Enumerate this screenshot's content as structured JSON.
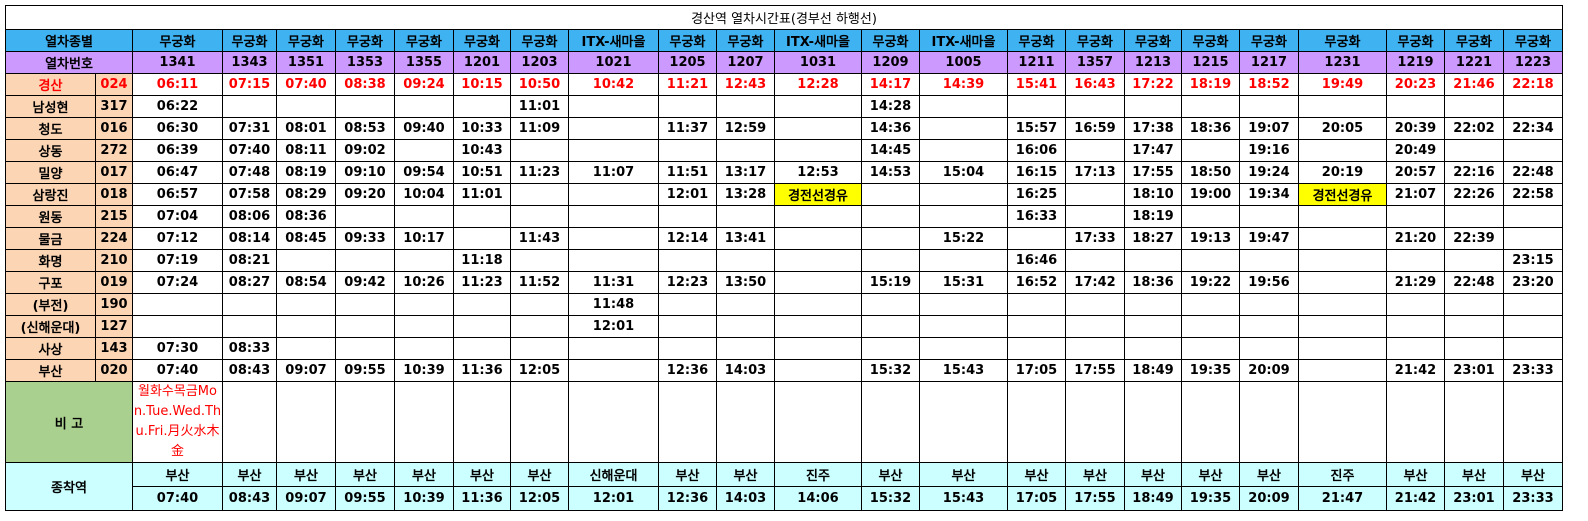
{
  "title": "경산역 열차시간표(경부선 하행선)",
  "header": {
    "type_label": "열차종별",
    "number_label": "열차번호"
  },
  "trains": [
    {
      "type": "무궁화",
      "number": "1341"
    },
    {
      "type": "무궁화",
      "number": "1343"
    },
    {
      "type": "무궁화",
      "number": "1351"
    },
    {
      "type": "무궁화",
      "number": "1353"
    },
    {
      "type": "무궁화",
      "number": "1355"
    },
    {
      "type": "무궁화",
      "number": "1201"
    },
    {
      "type": "무궁화",
      "number": "1203"
    },
    {
      "type": "ITX-새마을",
      "number": "1021"
    },
    {
      "type": "무궁화",
      "number": "1205"
    },
    {
      "type": "무궁화",
      "number": "1207"
    },
    {
      "type": "ITX-새마을",
      "number": "1031"
    },
    {
      "type": "무궁화",
      "number": "1209"
    },
    {
      "type": "ITX-새마을",
      "number": "1005"
    },
    {
      "type": "무궁화",
      "number": "1211"
    },
    {
      "type": "무궁화",
      "number": "1357"
    },
    {
      "type": "무궁화",
      "number": "1213"
    },
    {
      "type": "무궁화",
      "number": "1215"
    },
    {
      "type": "무궁화",
      "number": "1217"
    },
    {
      "type": "무궁화",
      "number": "1231"
    },
    {
      "type": "무궁화",
      "number": "1219"
    },
    {
      "type": "무궁화",
      "number": "1221"
    },
    {
      "type": "무궁화",
      "number": "1223"
    }
  ],
  "stations": [
    {
      "name": "경산",
      "code": "024",
      "times": [
        "06:11",
        "07:15",
        "07:40",
        "08:38",
        "09:24",
        "10:15",
        "10:50",
        "10:42",
        "11:21",
        "12:43",
        "12:28",
        "14:17",
        "14:39",
        "15:41",
        "16:43",
        "17:22",
        "18:19",
        "18:52",
        "19:49",
        "20:23",
        "21:46",
        "22:18"
      ]
    },
    {
      "name": "남성현",
      "code": "317",
      "times": [
        "06:22",
        null,
        null,
        null,
        null,
        null,
        "11:01",
        null,
        null,
        null,
        null,
        "14:28",
        null,
        null,
        null,
        null,
        null,
        null,
        null,
        null,
        null,
        null
      ]
    },
    {
      "name": "청도",
      "code": "016",
      "times": [
        "06:30",
        "07:31",
        "08:01",
        "08:53",
        "09:40",
        "10:33",
        "11:09",
        null,
        "11:37",
        "12:59",
        null,
        "14:36",
        null,
        "15:57",
        "16:59",
        "17:38",
        "18:36",
        "19:07",
        "20:05",
        "20:39",
        "22:02",
        "22:34"
      ]
    },
    {
      "name": "상동",
      "code": "272",
      "times": [
        "06:39",
        "07:40",
        "08:11",
        "09:02",
        null,
        "10:43",
        null,
        null,
        null,
        null,
        null,
        "14:45",
        null,
        "16:06",
        null,
        "17:47",
        null,
        "19:16",
        null,
        "20:49",
        null,
        null
      ]
    },
    {
      "name": "밀양",
      "code": "017",
      "times": [
        "06:47",
        "07:48",
        "08:19",
        "09:10",
        "09:54",
        "10:51",
        "11:23",
        "11:07",
        "11:51",
        "13:17",
        "12:53",
        "14:53",
        "15:04",
        "16:15",
        "17:13",
        "17:55",
        "18:50",
        "19:24",
        "20:19",
        "20:57",
        "22:16",
        "22:48"
      ]
    },
    {
      "name": "삼랑진",
      "code": "018",
      "times": [
        "06:57",
        "07:58",
        "08:29",
        "09:20",
        "10:04",
        "11:01",
        null,
        null,
        "12:01",
        "13:28",
        "경전선경유",
        null,
        null,
        "16:25",
        null,
        "18:10",
        "19:00",
        "19:34",
        "경전선경유",
        "21:07",
        "22:26",
        "22:58"
      ]
    },
    {
      "name": "원동",
      "code": "215",
      "times": [
        "07:04",
        "08:06",
        "08:36",
        null,
        null,
        null,
        null,
        null,
        null,
        null,
        null,
        null,
        null,
        "16:33",
        null,
        "18:19",
        null,
        null,
        null,
        null,
        null,
        null
      ]
    },
    {
      "name": "물금",
      "code": "224",
      "times": [
        "07:12",
        "08:14",
        "08:45",
        "09:33",
        "10:17",
        null,
        "11:43",
        null,
        "12:14",
        "13:41",
        null,
        null,
        "15:22",
        null,
        "17:33",
        "18:27",
        "19:13",
        "19:47",
        null,
        "21:20",
        "22:39",
        null
      ]
    },
    {
      "name": "화명",
      "code": "210",
      "times": [
        "07:19",
        "08:21",
        null,
        null,
        null,
        "11:18",
        null,
        null,
        null,
        null,
        null,
        null,
        null,
        "16:46",
        null,
        null,
        null,
        null,
        null,
        null,
        null,
        "23:15"
      ]
    },
    {
      "name": "구포",
      "code": "019",
      "times": [
        "07:24",
        "08:27",
        "08:54",
        "09:42",
        "10:26",
        "11:23",
        "11:52",
        "11:31",
        "12:23",
        "13:50",
        null,
        "15:19",
        "15:31",
        "16:52",
        "17:42",
        "18:36",
        "19:22",
        "19:56",
        null,
        "21:29",
        "22:48",
        "23:20"
      ]
    },
    {
      "name": "(부전)",
      "code": "190",
      "times": [
        null,
        null,
        null,
        null,
        null,
        null,
        null,
        "11:48",
        null,
        null,
        null,
        null,
        null,
        null,
        null,
        null,
        null,
        null,
        null,
        null,
        null,
        null
      ]
    },
    {
      "name": "(신해운대)",
      "code": "127",
      "times": [
        null,
        null,
        null,
        null,
        null,
        null,
        null,
        "12:01",
        null,
        null,
        null,
        null,
        null,
        null,
        null,
        null,
        null,
        null,
        null,
        null,
        null,
        null
      ]
    },
    {
      "name": "사상",
      "code": "143",
      "times": [
        "07:30",
        "08:33",
        null,
        null,
        null,
        null,
        null,
        null,
        null,
        null,
        null,
        null,
        null,
        null,
        null,
        null,
        null,
        null,
        null,
        null,
        null,
        null
      ]
    },
    {
      "name": "부산",
      "code": "020",
      "times": [
        "07:40",
        "08:43",
        "09:07",
        "09:55",
        "10:39",
        "11:36",
        "12:05",
        null,
        "12:36",
        "14:03",
        null,
        "15:32",
        "15:43",
        "17:05",
        "17:55",
        "18:49",
        "19:35",
        "20:09",
        null,
        "21:42",
        "23:01",
        "23:33"
      ]
    }
  ],
  "remarks": {
    "label": "비 고",
    "notes": [
      "월화수목금Mon.Tue.Wed.Thu.Fri.月火水木金",
      null,
      null,
      null,
      null,
      null,
      null,
      null,
      null,
      null,
      null,
      null,
      null,
      null,
      null,
      null,
      null,
      null,
      null,
      null,
      null,
      null
    ]
  },
  "terminal": {
    "label": "종착역",
    "destinations": [
      "부산",
      "부산",
      "부산",
      "부산",
      "부산",
      "부산",
      "부산",
      "신해운대",
      "부산",
      "부산",
      "진주",
      "부산",
      "부산",
      "부산",
      "부산",
      "부산",
      "부산",
      "부산",
      "진주",
      "부산",
      "부산",
      "부산"
    ],
    "arrivals": [
      "07:40",
      "08:43",
      "09:07",
      "09:55",
      "10:39",
      "11:36",
      "12:05",
      "12:01",
      "12:36",
      "14:03",
      "14:06",
      "15:32",
      "15:43",
      "17:05",
      "17:55",
      "18:49",
      "19:35",
      "20:09",
      "21:47",
      "21:42",
      "23:01",
      "23:33"
    ]
  }
}
